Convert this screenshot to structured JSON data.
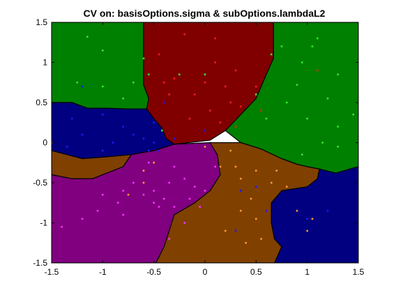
{
  "chart_data": {
    "type": "scatter",
    "title": "CV on: basisOptions.sigma & subOptions.lambdaL2",
    "xlabel": "",
    "ylabel": "",
    "xlim": [
      -1.5,
      1.5
    ],
    "ylim": [
      -1.5,
      1.5
    ],
    "x_ticks": [
      -1.5,
      -1,
      -0.5,
      0,
      0.5,
      1,
      1.5
    ],
    "x_tick_labels": [
      "-1.5",
      "-1",
      "-0.5",
      "0",
      "0.5",
      "1",
      "1.5"
    ],
    "y_ticks": [
      -1.5,
      -1,
      -0.5,
      0,
      0.5,
      1,
      1.5
    ],
    "y_tick_labels": [
      "-1.5",
      "-1",
      "-0.5",
      "0",
      "0.5",
      "1",
      "1.5"
    ],
    "grid": false,
    "legend": "none",
    "regions": [
      {
        "class": "green-left",
        "fill": "#008000",
        "polygon": [
          [
            -1.5,
            1.5
          ],
          [
            -0.6,
            1.5
          ],
          [
            -0.6,
            0.72
          ],
          [
            -0.55,
            0.55
          ],
          [
            -0.57,
            0.42
          ],
          [
            -0.76,
            0.42
          ],
          [
            -0.98,
            0.43
          ],
          [
            -1.15,
            0.43
          ],
          [
            -1.3,
            0.5
          ],
          [
            -1.5,
            0.5
          ]
        ]
      },
      {
        "class": "darkred-top",
        "fill": "#800000",
        "polygon": [
          [
            -0.6,
            1.5
          ],
          [
            0.67,
            1.5
          ],
          [
            0.67,
            1.05
          ],
          [
            0.6,
            0.85
          ],
          [
            0.5,
            0.55
          ],
          [
            0.35,
            0.35
          ],
          [
            0.2,
            0.15
          ],
          [
            0.05,
            0.03
          ],
          [
            -0.3,
            -0.02
          ],
          [
            -0.38,
            0.05
          ],
          [
            -0.42,
            0.18
          ],
          [
            -0.5,
            0.3
          ],
          [
            -0.57,
            0.42
          ],
          [
            -0.55,
            0.55
          ],
          [
            -0.6,
            0.72
          ]
        ]
      },
      {
        "class": "green-right",
        "fill": "#008000",
        "polygon": [
          [
            0.67,
            1.5
          ],
          [
            1.5,
            1.5
          ],
          [
            1.5,
            -0.3
          ],
          [
            1.28,
            -0.38
          ],
          [
            1.12,
            -0.33
          ],
          [
            1.0,
            -0.3
          ],
          [
            0.9,
            -0.27
          ],
          [
            0.75,
            -0.2
          ],
          [
            0.55,
            -0.08
          ],
          [
            0.35,
            0.0
          ],
          [
            0.2,
            0.15
          ],
          [
            0.35,
            0.35
          ],
          [
            0.5,
            0.55
          ],
          [
            0.6,
            0.85
          ],
          [
            0.67,
            1.05
          ]
        ]
      },
      {
        "class": "navy-left",
        "fill": "#000080",
        "polygon": [
          [
            -1.5,
            0.5
          ],
          [
            -1.3,
            0.5
          ],
          [
            -1.15,
            0.43
          ],
          [
            -0.98,
            0.43
          ],
          [
            -0.76,
            0.42
          ],
          [
            -0.57,
            0.42
          ],
          [
            -0.5,
            0.3
          ],
          [
            -0.42,
            0.18
          ],
          [
            -0.38,
            0.05
          ],
          [
            -0.3,
            -0.02
          ],
          [
            -0.5,
            -0.1
          ],
          [
            -0.72,
            -0.15
          ],
          [
            -0.98,
            -0.18
          ],
          [
            -1.2,
            -0.2
          ],
          [
            -1.35,
            -0.15
          ],
          [
            -1.5,
            -0.1
          ]
        ]
      },
      {
        "class": "brown-left",
        "fill": "#804000",
        "polygon": [
          [
            -1.5,
            -0.1
          ],
          [
            -1.35,
            -0.15
          ],
          [
            -1.2,
            -0.2
          ],
          [
            -0.98,
            -0.18
          ],
          [
            -0.72,
            -0.15
          ],
          [
            -0.8,
            -0.3
          ],
          [
            -1.1,
            -0.45
          ],
          [
            -1.3,
            -0.45
          ],
          [
            -1.5,
            -0.4
          ]
        ]
      },
      {
        "class": "purple",
        "fill": "#800080",
        "polygon": [
          [
            -1.5,
            -0.4
          ],
          [
            -1.3,
            -0.45
          ],
          [
            -1.1,
            -0.45
          ],
          [
            -0.8,
            -0.3
          ],
          [
            -0.72,
            -0.15
          ],
          [
            -0.5,
            -0.1
          ],
          [
            -0.3,
            -0.02
          ],
          [
            0.05,
            0.0
          ],
          [
            0.12,
            -0.15
          ],
          [
            0.15,
            -0.4
          ],
          [
            0.05,
            -0.6
          ],
          [
            -0.1,
            -0.75
          ],
          [
            -0.3,
            -0.9
          ],
          [
            -0.35,
            -1.1
          ],
          [
            -0.4,
            -1.3
          ],
          [
            -0.48,
            -1.5
          ],
          [
            -1.5,
            -1.5
          ]
        ]
      },
      {
        "class": "brown-center",
        "fill": "#804000",
        "polygon": [
          [
            0.05,
            0.0
          ],
          [
            0.35,
            0.0
          ],
          [
            0.55,
            -0.08
          ],
          [
            0.75,
            -0.2
          ],
          [
            0.9,
            -0.27
          ],
          [
            1.0,
            -0.3
          ],
          [
            1.12,
            -0.33
          ],
          [
            1.1,
            -0.45
          ],
          [
            1.0,
            -0.55
          ],
          [
            0.75,
            -0.6
          ],
          [
            0.65,
            -0.75
          ],
          [
            0.65,
            -1.0
          ],
          [
            0.68,
            -1.2
          ],
          [
            0.75,
            -1.3
          ],
          [
            0.68,
            -1.5
          ],
          [
            -0.48,
            -1.5
          ],
          [
            -0.4,
            -1.3
          ],
          [
            -0.35,
            -1.1
          ],
          [
            -0.3,
            -0.9
          ],
          [
            -0.1,
            -0.75
          ],
          [
            0.05,
            -0.6
          ],
          [
            0.15,
            -0.4
          ],
          [
            0.12,
            -0.15
          ]
        ]
      },
      {
        "class": "navy-right",
        "fill": "#000080",
        "polygon": [
          [
            1.12,
            -0.33
          ],
          [
            1.28,
            -0.38
          ],
          [
            1.5,
            -0.3
          ],
          [
            1.5,
            -1.5
          ],
          [
            0.68,
            -1.5
          ],
          [
            0.75,
            -1.3
          ],
          [
            0.68,
            -1.2
          ],
          [
            0.65,
            -1.0
          ],
          [
            0.65,
            -0.75
          ],
          [
            0.75,
            -0.6
          ],
          [
            1.0,
            -0.55
          ],
          [
            1.1,
            -0.45
          ]
        ]
      }
    ],
    "series": [
      {
        "color": "#33e633",
        "points": [
          [
            -1.15,
            1.32
          ],
          [
            -1.0,
            1.15
          ],
          [
            -0.6,
            1.05
          ],
          [
            -1.25,
            0.75
          ],
          [
            -1.0,
            0.7
          ],
          [
            -0.7,
            0.75
          ],
          [
            -0.55,
            0.85
          ],
          [
            -0.8,
            0.55
          ],
          [
            0.75,
            1.2
          ],
          [
            0.65,
            1.1
          ],
          [
            1.1,
            1.3
          ],
          [
            1.05,
            1.2
          ],
          [
            1.3,
            0.85
          ],
          [
            0.95,
            1.0
          ],
          [
            0.9,
            0.72
          ],
          [
            1.2,
            0.55
          ],
          [
            0.8,
            0.5
          ],
          [
            0.6,
            0.3
          ],
          [
            1.0,
            0.3
          ],
          [
            1.3,
            0.2
          ],
          [
            1.45,
            0.35
          ],
          [
            0.5,
            0.6
          ],
          [
            1.15,
            0.0
          ],
          [
            0.95,
            -0.15
          ],
          [
            1.3,
            -0.05
          ],
          [
            -0.42,
            0.15
          ],
          [
            0.0,
            0.85
          ],
          [
            -0.25,
            0.85
          ]
        ]
      },
      {
        "color": "#ff1a1a",
        "points": [
          [
            -0.2,
            1.35
          ],
          [
            0.1,
            1.3
          ],
          [
            -0.45,
            1.1
          ],
          [
            -0.3,
            0.8
          ],
          [
            0.0,
            0.75
          ],
          [
            0.2,
            0.7
          ],
          [
            -0.1,
            0.6
          ],
          [
            0.25,
            0.5
          ],
          [
            0.35,
            0.45
          ],
          [
            0.05,
            0.4
          ],
          [
            -0.15,
            0.3
          ],
          [
            0.15,
            0.25
          ],
          [
            0.3,
            0.2
          ],
          [
            0.55,
            0.4
          ],
          [
            0.5,
            0.7
          ],
          [
            -0.35,
            0.6
          ],
          [
            0.1,
            1.0
          ],
          [
            0.3,
            0.9
          ],
          [
            -0.4,
            0.75
          ],
          [
            1.1,
            0.9
          ]
        ]
      },
      {
        "color": "#1a1aff",
        "points": [
          [
            -1.3,
            0.3
          ],
          [
            -1.0,
            0.35
          ],
          [
            -0.8,
            0.2
          ],
          [
            -1.2,
            0.1
          ],
          [
            -0.9,
            0.0
          ],
          [
            -0.6,
            0.05
          ],
          [
            -0.5,
            0.25
          ],
          [
            -1.35,
            -0.05
          ],
          [
            -1.0,
            -0.1
          ],
          [
            -0.55,
            -0.1
          ],
          [
            -0.7,
            0.1
          ],
          [
            -0.3,
            0.05
          ],
          [
            -0.5,
            0.0
          ],
          [
            -0.45,
            -0.1
          ],
          [
            0.5,
            -0.55
          ],
          [
            0.35,
            -0.6
          ],
          [
            0.6,
            -0.85
          ],
          [
            1.0,
            -0.95
          ],
          [
            1.2,
            -0.85
          ],
          [
            0.3,
            -1.1
          ],
          [
            -1.2,
            0.7
          ],
          [
            -0.4,
            0.5
          ],
          [
            0.0,
            0.15
          ]
        ]
      },
      {
        "color": "#ff33ff",
        "points": [
          [
            -1.4,
            -1.05
          ],
          [
            -1.2,
            -0.95
          ],
          [
            -1.0,
            -0.65
          ],
          [
            -0.85,
            -0.75
          ],
          [
            -0.8,
            -0.9
          ],
          [
            -0.7,
            -0.5
          ],
          [
            -0.5,
            -0.6
          ],
          [
            -0.4,
            -0.7
          ],
          [
            -0.35,
            -0.5
          ],
          [
            -0.2,
            -0.45
          ],
          [
            -0.1,
            -0.55
          ],
          [
            0.0,
            -0.6
          ],
          [
            -0.3,
            -0.3
          ],
          [
            -0.55,
            -0.25
          ],
          [
            -0.15,
            -0.7
          ],
          [
            -0.3,
            -0.8
          ],
          [
            -0.2,
            -1.0
          ],
          [
            -0.35,
            -1.2
          ],
          [
            -0.5,
            -0.75
          ],
          [
            -0.6,
            -0.65
          ],
          [
            -0.8,
            -0.6
          ],
          [
            -1.05,
            -0.85
          ],
          [
            -0.45,
            -0.8
          ],
          [
            0.1,
            -0.3
          ],
          [
            -0.05,
            -0.8
          ]
        ]
      },
      {
        "color": "#ff9933",
        "points": [
          [
            0.25,
            -0.1
          ],
          [
            0.3,
            -0.3
          ],
          [
            0.5,
            -0.35
          ],
          [
            0.65,
            -0.5
          ],
          [
            0.8,
            -0.55
          ],
          [
            0.7,
            -0.35
          ],
          [
            0.45,
            -0.7
          ],
          [
            0.35,
            -0.85
          ],
          [
            0.2,
            -1.1
          ],
          [
            0.4,
            -1.25
          ],
          [
            0.55,
            -1.2
          ],
          [
            0.5,
            -0.95
          ],
          [
            -0.5,
            -0.25
          ],
          [
            -0.6,
            -0.35
          ],
          [
            -0.75,
            -0.65
          ],
          [
            0.35,
            -0.45
          ],
          [
            0.15,
            -0.3
          ],
          [
            1.05,
            -0.95
          ],
          [
            0.9,
            -0.85
          ],
          [
            1.0,
            -1.1
          ],
          [
            -1.5,
            0.0
          ],
          [
            0.0,
            -0.05
          ],
          [
            -0.6,
            -0.5
          ]
        ]
      }
    ]
  }
}
